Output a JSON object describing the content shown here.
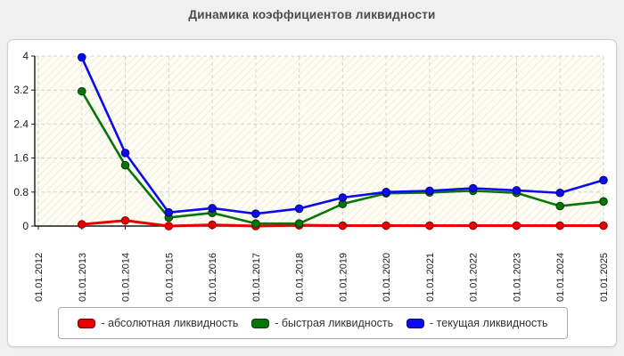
{
  "page": {
    "title": "Динамика коэффициентов ликвидности"
  },
  "chart_data": {
    "type": "line",
    "title": "Динамика коэффициентов ликвидности",
    "categories": [
      "01.01.2012",
      "01.01.2013",
      "01.01.2014",
      "01.01.2015",
      "01.01.2016",
      "01.01.2017",
      "01.01.2018",
      "01.01.2019",
      "01.01.2020",
      "01.01.2021",
      "01.01.2022",
      "01.01.2023",
      "01.01.2024",
      "01.01.2025"
    ],
    "series": [
      {
        "name": "абсолютная ликвидность",
        "color": "#e60000",
        "edge_color": "#8f0000",
        "values": [
          null,
          0.04,
          0.13,
          0.0,
          0.03,
          0.0,
          0.02,
          0.01,
          0.01,
          0.01,
          0.01,
          0.01,
          0.01,
          0.01
        ]
      },
      {
        "name": "быстрая ликвидность",
        "color": "#077407",
        "edge_color": "#033f03",
        "values": [
          null,
          3.17,
          1.43,
          0.2,
          0.31,
          0.06,
          0.06,
          0.52,
          0.77,
          0.79,
          0.83,
          0.78,
          0.47,
          0.58
        ]
      },
      {
        "name": "текущая ликвидность",
        "color": "#0b0bee",
        "edge_color": "#000080",
        "values": [
          null,
          3.97,
          1.72,
          0.32,
          0.42,
          0.29,
          0.41,
          0.67,
          0.8,
          0.83,
          0.89,
          0.84,
          0.78,
          1.08
        ]
      }
    ],
    "y_ticks": [
      0,
      0.8,
      1.6,
      2.4,
      3.2,
      4
    ],
    "ylim": [
      0,
      4.1
    ],
    "grid": "dashed-horizontal-and-vertical",
    "plot_background": "hatched-diagonal",
    "x_tick_label_rotation": 90,
    "legend_position": "bottom-box"
  },
  "legend": {
    "items": [
      {
        "label": "- абсолютная ликвидность",
        "color": "#e60000"
      },
      {
        "label": "- быстрая ликвидность",
        "color": "#077407"
      },
      {
        "label": "- текущая ликвидность",
        "color": "#0b0bee"
      }
    ]
  },
  "colors": {
    "page_bg": "#f0f0f0",
    "panel_bg": "#ffffff",
    "grid": "#d4d4d4",
    "axis": "#1a1a1a",
    "title": "#4b4b4b",
    "tick_label": "#1a1a1a",
    "plot_tint": "#fdfdf2",
    "hatch": "#e4e4de"
  }
}
